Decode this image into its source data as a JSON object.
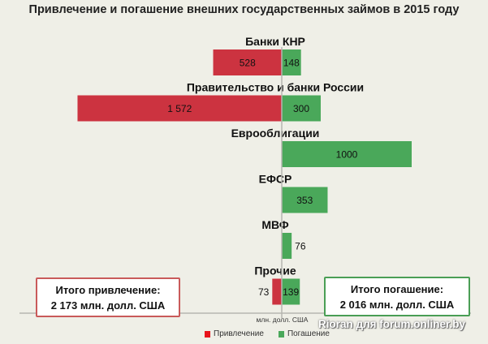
{
  "chart_data": {
    "type": "bar",
    "orientation": "horizontal-diverging",
    "title": "Привлечение и погашение внешних государственных займов в 2015 году",
    "categories": [
      "Банки КНР",
      "Правительство и  банки России",
      "Еврооблигации",
      "ЕФСР",
      "МВФ",
      "Прочие"
    ],
    "series": [
      {
        "name": "Привлечение",
        "color": "#cc3340",
        "values": [
          528,
          1572,
          0,
          0,
          0,
          73
        ],
        "labels": [
          "528",
          "1 572",
          "",
          "",
          "",
          "73"
        ]
      },
      {
        "name": "Погашение",
        "color": "#4aa85a",
        "values": [
          148,
          300,
          1000,
          353,
          76,
          139
        ],
        "labels": [
          "148",
          "300",
          "1000",
          "353",
          "76",
          "139"
        ]
      }
    ],
    "xlabel": "млн. долл. США",
    "legend_position": "bottom",
    "grid": false
  },
  "totals": {
    "attraction_title": "Итого привлечение:",
    "attraction_value": "2 173 млн. долл. США",
    "repayment_title": "Итого погашение:",
    "repayment_value": "2 016 млн. долл. США"
  },
  "watermark": "Rioran для forum.onliner.by"
}
